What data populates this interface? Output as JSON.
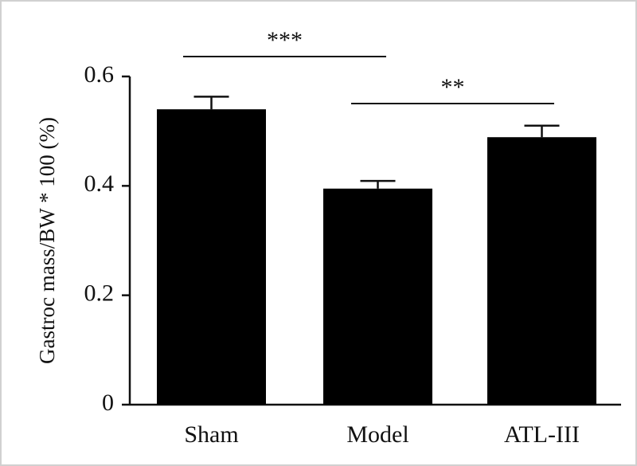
{
  "chart_data": {
    "type": "bar",
    "y_label": "Gastroc mass/BW * 100 (%)",
    "categories": [
      "Sham",
      "Model",
      "ATL-III"
    ],
    "values": [
      0.54,
      0.395,
      0.489
    ],
    "errors": [
      0.023,
      0.014,
      0.021
    ],
    "color": "#000000",
    "ylim": [
      0,
      0.6
    ],
    "yticks": [
      0,
      0.2,
      0.4,
      0.6
    ],
    "annotations": [
      "***",
      "**"
    ]
  }
}
